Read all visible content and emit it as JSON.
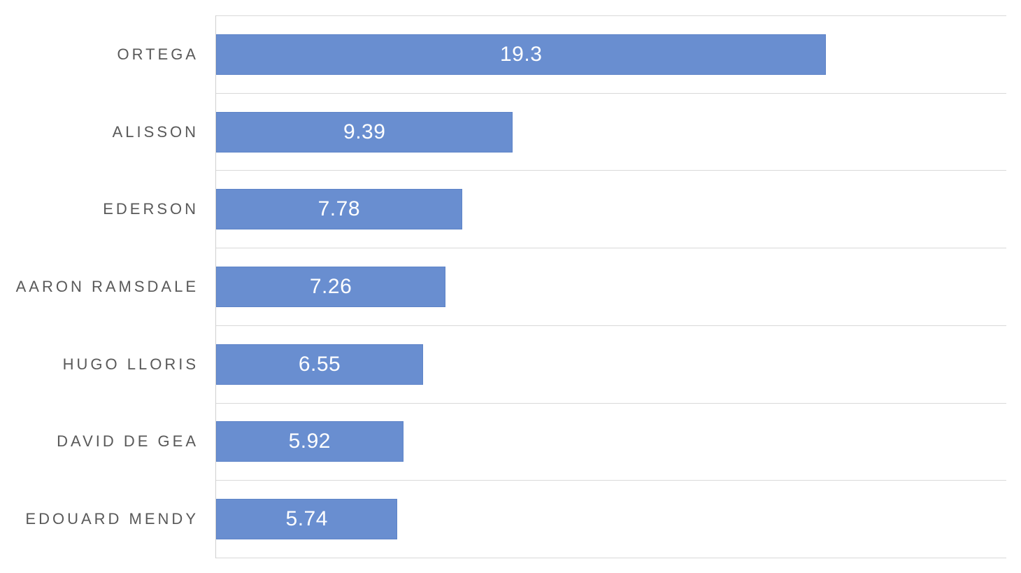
{
  "chart_data": {
    "type": "bar",
    "orientation": "horizontal",
    "title": "",
    "xlabel": "",
    "ylabel": "",
    "categories": [
      "ORTEGA",
      "ALISSON",
      "EDERSON",
      "AARON RAMSDALE",
      "HUGO LLORIS",
      "DAVID DE GEA",
      "EDOUARD MENDY"
    ],
    "values": [
      19.3,
      9.39,
      7.78,
      7.26,
      6.55,
      5.92,
      5.74
    ],
    "value_labels": [
      "19.3",
      "9.39",
      "7.78",
      "7.26",
      "6.55",
      "5.92",
      "5.74"
    ],
    "xlim": [
      0,
      25
    ],
    "grid": "horizontal category separators on, no vertical gridlines, no axis tick labels",
    "legend": "none",
    "data_label_position": "inside-center",
    "colors": {
      "bar": "#698ED0",
      "bar_border": "#5E84C8",
      "value_text": "#FFFFFF",
      "category_text": "#595959",
      "gridline": "#D9D9D9",
      "axis_line": "#D0D0D0",
      "background": "#FFFFFF"
    }
  }
}
